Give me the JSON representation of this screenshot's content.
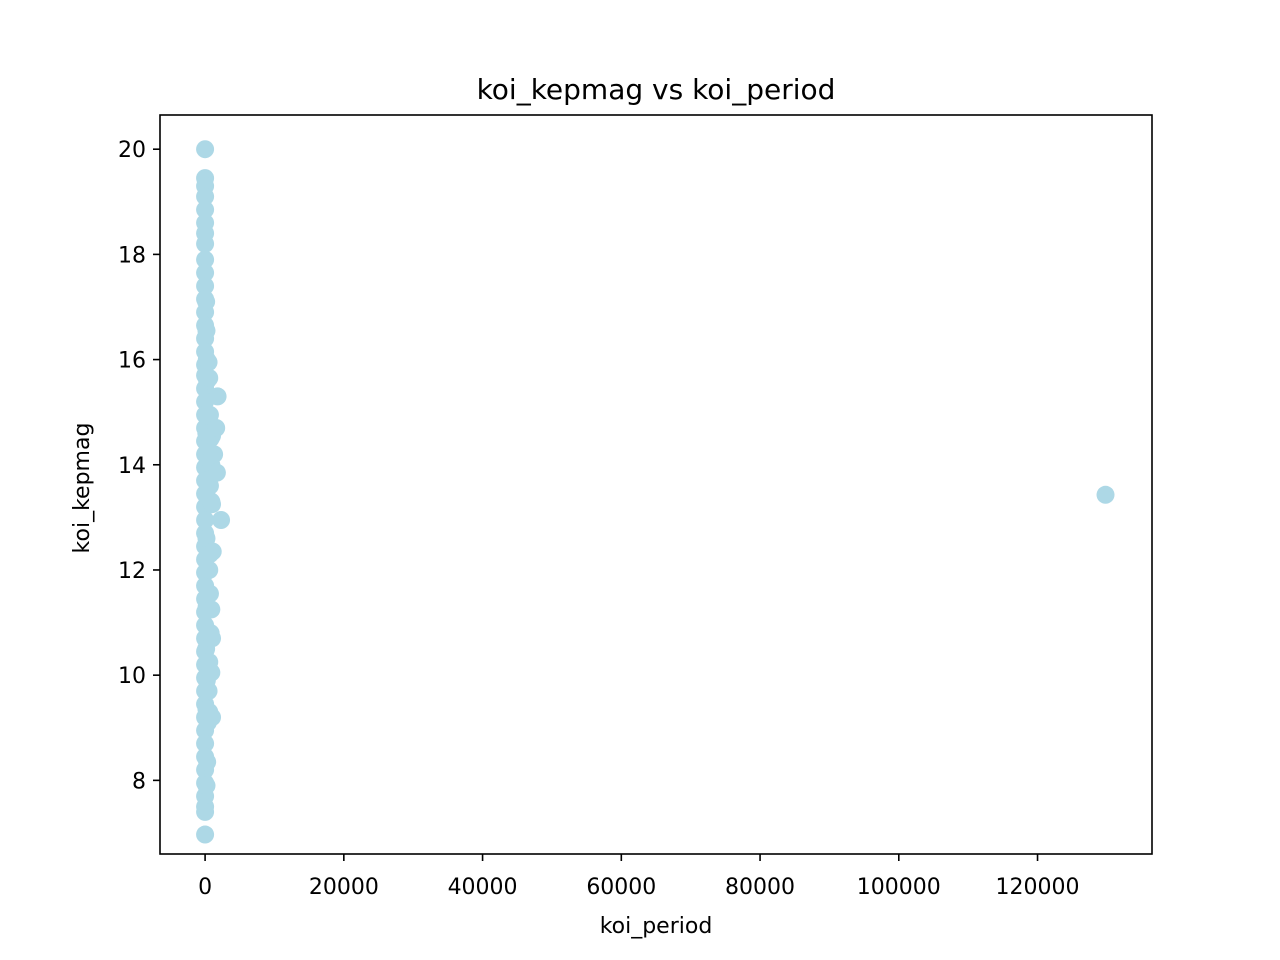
{
  "chart_data": {
    "type": "scatter",
    "title": "koi_kepmag vs koi_period",
    "xlabel": "koi_period",
    "ylabel": "koi_kepmag",
    "xlim": [
      -6500,
      136500
    ],
    "ylim": [
      6.6,
      20.65
    ],
    "xticks": [
      0,
      20000,
      40000,
      60000,
      80000,
      100000,
      120000
    ],
    "yticks": [
      8,
      10,
      12,
      14,
      16,
      18,
      20
    ],
    "grid": false,
    "legend": "none",
    "marker_color": "#add8e6",
    "points": [
      [
        0,
        20.0
      ],
      [
        0,
        19.45
      ],
      [
        0,
        19.3
      ],
      [
        0,
        19.1
      ],
      [
        0,
        18.85
      ],
      [
        0,
        18.6
      ],
      [
        0,
        18.4
      ],
      [
        0,
        18.2
      ],
      [
        0,
        17.9
      ],
      [
        0,
        17.65
      ],
      [
        0,
        17.4
      ],
      [
        0,
        17.15
      ],
      [
        0,
        16.9
      ],
      [
        0,
        16.65
      ],
      [
        0,
        16.4
      ],
      [
        0,
        16.15
      ],
      [
        0,
        15.9
      ],
      [
        0,
        15.7
      ],
      [
        0,
        15.45
      ],
      [
        0,
        15.2
      ],
      [
        0,
        14.95
      ],
      [
        0,
        14.7
      ],
      [
        0,
        14.45
      ],
      [
        0,
        14.2
      ],
      [
        0,
        13.95
      ],
      [
        0,
        13.7
      ],
      [
        0,
        13.45
      ],
      [
        0,
        13.2
      ],
      [
        0,
        12.95
      ],
      [
        0,
        12.7
      ],
      [
        0,
        12.45
      ],
      [
        0,
        12.2
      ],
      [
        0,
        11.95
      ],
      [
        0,
        11.7
      ],
      [
        0,
        11.45
      ],
      [
        0,
        11.2
      ],
      [
        0,
        10.95
      ],
      [
        0,
        10.7
      ],
      [
        0,
        10.45
      ],
      [
        0,
        10.2
      ],
      [
        0,
        9.95
      ],
      [
        0,
        9.7
      ],
      [
        0,
        9.45
      ],
      [
        0,
        9.2
      ],
      [
        0,
        8.95
      ],
      [
        0,
        8.7
      ],
      [
        0,
        8.45
      ],
      [
        0,
        8.2
      ],
      [
        0,
        7.95
      ],
      [
        0,
        7.7
      ],
      [
        0,
        7.5
      ],
      [
        0,
        7.4
      ],
      [
        0,
        6.97
      ],
      [
        150,
        17.1
      ],
      [
        200,
        16.55
      ],
      [
        250,
        16.0
      ],
      [
        300,
        15.6
      ],
      [
        180,
        14.6
      ],
      [
        250,
        13.4
      ],
      [
        200,
        12.6
      ],
      [
        220,
        11.3
      ],
      [
        150,
        10.5
      ],
      [
        250,
        9.9
      ],
      [
        200,
        9.35
      ],
      [
        300,
        8.35
      ],
      [
        200,
        7.9
      ],
      [
        500,
        15.95
      ],
      [
        600,
        15.65
      ],
      [
        700,
        14.95
      ],
      [
        800,
        14.5
      ],
      [
        900,
        14.0
      ],
      [
        700,
        13.6
      ],
      [
        900,
        13.3
      ],
      [
        700,
        12.3
      ],
      [
        600,
        12.0
      ],
      [
        700,
        11.55
      ],
      [
        800,
        10.8
      ],
      [
        600,
        10.25
      ],
      [
        500,
        9.7
      ],
      [
        400,
        9.1
      ],
      [
        600,
        9.3
      ],
      [
        1000,
        14.55
      ],
      [
        1100,
        14.2
      ],
      [
        1000,
        13.25
      ],
      [
        1100,
        12.35
      ],
      [
        900,
        11.25
      ],
      [
        1000,
        10.7
      ],
      [
        900,
        10.05
      ],
      [
        1000,
        9.2
      ],
      [
        1300,
        14.2
      ],
      [
        1400,
        13.85
      ],
      [
        1600,
        14.7
      ],
      [
        1700,
        13.85
      ],
      [
        1800,
        15.3
      ],
      [
        2300,
        12.95
      ],
      [
        129800,
        13.43
      ]
    ]
  }
}
